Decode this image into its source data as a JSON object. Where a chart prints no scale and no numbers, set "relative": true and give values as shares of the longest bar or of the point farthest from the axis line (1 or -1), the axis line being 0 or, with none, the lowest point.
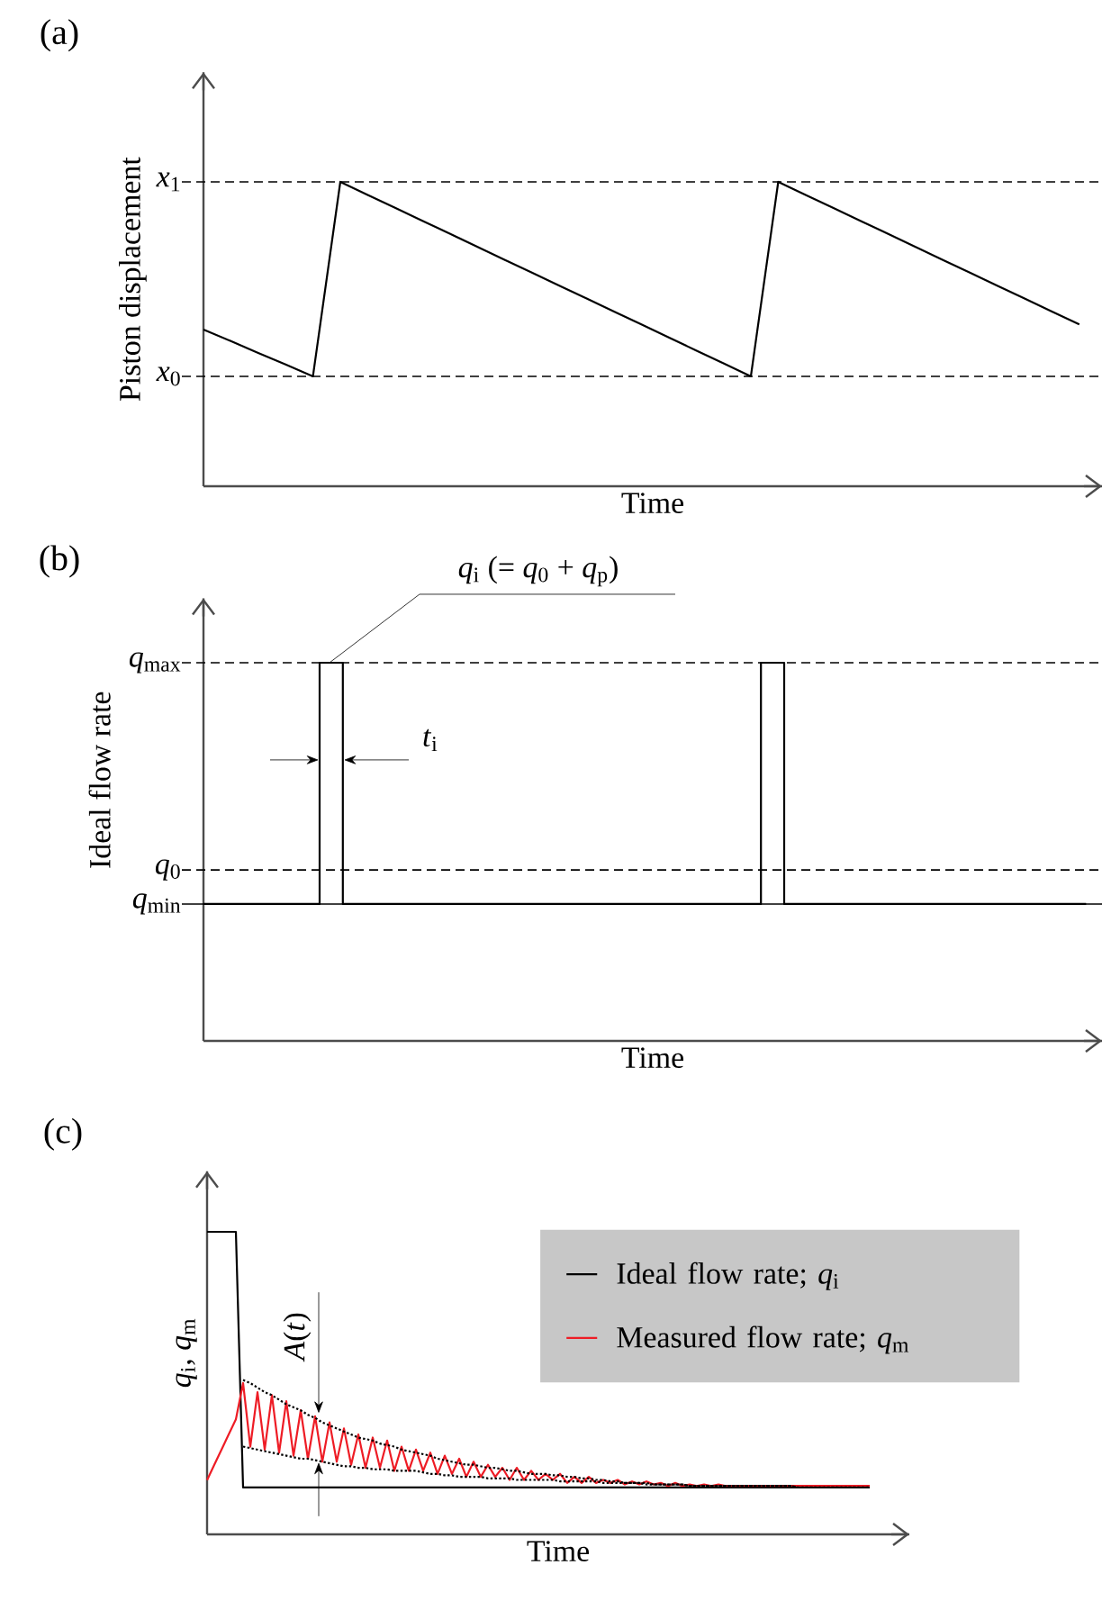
{
  "chart_data": [
    {
      "type": "line",
      "title": "(a)",
      "xlabel": "Time",
      "ylabel": "Piston displacement",
      "relative": true,
      "categories": [
        null,
        null,
        null,
        null,
        null,
        null,
        null,
        null,
        null,
        null,
        null,
        null,
        null,
        null,
        null,
        null,
        null,
        null,
        null,
        null,
        null,
        null,
        null,
        null,
        null,
        null,
        null,
        null,
        null,
        null,
        null,
        null,
        null
      ],
      "series": [
        {
          "color": "#000000",
          "values": [
            0.515,
            0.477,
            0.438,
            0.4,
            0.361,
            1,
            0.957,
            0.915,
            0.872,
            0.83,
            0.787,
            0.744,
            0.702,
            0.659,
            0.617,
            0.574,
            0.532,
            0.489,
            0.446,
            0.404,
            0.361,
            1,
            0.957,
            0.915,
            0.872,
            0.83,
            0.787,
            0.744,
            0.702,
            0.659,
            0.617,
            0.574,
            0.532
          ]
        }
      ],
      "ref_lines": [
        {
          "axis": "y",
          "value": 1,
          "label": "*x*$_{1}$",
          "color": "#000000",
          "line_style": "dashed"
        },
        {
          "axis": "y",
          "value": 0.361,
          "label": "*x*$_{0}$",
          "color": "#000000",
          "line_style": "dashed"
        }
      ]
    },
    {
      "type": "step",
      "title": "(b)",
      "xlabel": "Time",
      "ylabel": "Ideal flow rate",
      "relative": true,
      "categories": [
        null,
        null,
        null,
        null,
        null,
        null,
        null,
        null,
        null,
        null,
        null,
        null,
        null,
        null,
        null,
        null,
        null,
        null,
        null,
        null,
        null,
        null,
        null,
        null,
        null,
        null,
        null,
        null,
        null,
        null,
        null,
        null,
        null,
        null,
        null,
        null,
        null,
        null,
        null
      ],
      "series": [
        {
          "color": "#000000",
          "values": [
            0.362,
            0.362,
            0.362,
            0.362,
            0.362,
            1,
            0.362,
            0.362,
            0.362,
            0.362,
            0.362,
            0.362,
            0.362,
            0.362,
            0.362,
            0.362,
            0.362,
            0.362,
            0.362,
            0.362,
            0.362,
            0.362,
            0.362,
            0.362,
            1,
            0.362,
            0.362,
            0.362,
            0.362,
            0.362,
            0.362,
            0.362,
            0.362,
            0.362,
            0.362,
            0.362,
            0.362,
            0.362,
            0.362
          ]
        }
      ],
      "ref_lines": [
        {
          "axis": "y",
          "value": 1,
          "label": "*q*$_{max}$",
          "color": "#000000",
          "line_style": "dashed"
        },
        {
          "axis": "y",
          "value": 0.452,
          "label": "*q*$_{0}$",
          "color": "#000000",
          "line_style": "dashed"
        },
        {
          "axis": "y",
          "value": 0.362,
          "label": "*q*$_{min}$",
          "color": "#000000",
          "line_style": "solid"
        }
      ],
      "annotations": [
        "*q*$_{i}$ (= *q*$_{0}$ + *q*$_{p}$)",
        "*t*$_{i}$"
      ]
    },
    {
      "type": "line",
      "title": "(c)",
      "xlabel": "Time",
      "ylabel": "*q*$_{i}$, *q*$_{m}$",
      "relative": true,
      "legend": "top right",
      "categories": [
        null,
        null,
        null,
        null,
        null,
        null,
        null,
        null,
        null,
        null,
        null,
        null,
        null,
        null,
        null,
        null,
        null,
        null,
        null,
        null,
        null,
        null,
        null,
        null,
        null,
        null,
        null,
        null,
        null,
        null,
        null,
        null,
        null,
        null,
        null,
        null,
        null,
        null,
        null,
        null,
        null,
        null,
        null,
        null,
        null,
        null,
        null,
        null,
        null,
        null,
        null,
        null,
        null,
        null,
        null,
        null,
        null,
        null,
        null,
        null,
        null,
        null,
        null,
        null,
        null,
        null,
        null,
        null,
        null,
        null,
        null,
        null,
        null,
        null,
        null,
        null,
        null,
        null,
        null,
        null,
        null,
        null,
        null,
        null,
        null,
        null,
        null,
        null,
        null,
        null,
        null,
        null,
        null
      ],
      "series": [
        {
          "name": "Ideal flow rate; *q*$_{i}$",
          "color": "#000000",
          "line_style": "solid",
          "values": [
            1,
            1,
            1,
            1,
            1,
            0.155,
            0.155,
            0.155,
            0.155,
            0.155,
            0.155,
            0.155,
            0.155,
            0.155,
            0.155,
            0.155,
            0.155,
            0.155,
            0.155,
            0.155,
            0.155,
            0.155,
            0.155,
            0.155,
            0.155,
            0.155,
            0.155,
            0.155,
            0.155,
            0.155,
            0.155,
            0.155,
            0.155,
            0.155,
            0.155,
            0.155,
            0.155,
            0.155,
            0.155,
            0.155,
            0.155,
            0.155,
            0.155,
            0.155,
            0.155,
            0.155,
            0.155,
            0.155,
            0.155,
            0.155,
            0.155,
            0.155,
            0.155,
            0.155,
            0.155,
            0.155,
            0.155,
            0.155,
            0.155,
            0.155,
            0.155,
            0.155,
            0.155,
            0.155,
            0.155,
            0.155,
            0.155,
            0.155,
            0.155,
            0.155,
            0.155,
            0.155,
            0.155,
            0.155,
            0.155,
            0.155,
            0.155,
            0.155,
            0.155,
            0.155,
            0.155,
            0.155,
            0.155,
            0.155,
            0.155,
            0.155,
            0.155,
            0.155,
            0.155,
            0.155,
            0.155,
            0.155,
            0.155
          ]
        },
        {
          "name": "Measured flow rate; *q*$_{m}$",
          "color": "#ee1c25",
          "line_style": "solid",
          "values": [
            0.179,
            0.23,
            0.28,
            0.33,
            0.38,
            0.5,
            0.29,
            0.47,
            0.28,
            0.46,
            0.27,
            0.44,
            0.26,
            0.41,
            0.25,
            0.39,
            0.24,
            0.37,
            0.24,
            0.35,
            0.23,
            0.33,
            0.22,
            0.32,
            0.22,
            0.31,
            0.21,
            0.29,
            0.21,
            0.28,
            0.21,
            0.27,
            0.2,
            0.26,
            0.2,
            0.25,
            0.19,
            0.24,
            0.19,
            0.23,
            0.19,
            0.22,
            0.18,
            0.22,
            0.18,
            0.21,
            0.18,
            0.2,
            0.18,
            0.2,
            0.17,
            0.19,
            0.17,
            0.19,
            0.17,
            0.18,
            0.17,
            0.18,
            0.165,
            0.175,
            0.165,
            0.175,
            0.165,
            0.17,
            0.16,
            0.17,
            0.16,
            0.165,
            0.16,
            0.165,
            0.16,
            0.165,
            0.16,
            0.16,
            0.16,
            0.16,
            0.16,
            0.16,
            0.16,
            0.16,
            0.16,
            0.16,
            0.16,
            0.16,
            0.16,
            0.16,
            0.16,
            0.16,
            0.16,
            0.16,
            0.16,
            0.16,
            0.16
          ]
        },
        {
          "color": "#000000",
          "line_style": "dotted",
          "values": [
            null,
            null,
            null,
            null,
            null,
            0.51,
            0.5,
            0.485,
            0.47,
            0.46,
            0.445,
            0.43,
            0.42,
            0.41,
            0.395,
            0.385,
            0.37,
            0.36,
            0.35,
            0.34,
            0.33,
            0.32,
            0.315,
            0.31,
            0.3,
            0.295,
            0.29,
            0.28,
            0.275,
            0.27,
            0.265,
            0.26,
            0.25,
            0.245,
            0.24,
            0.235,
            0.23,
            0.23,
            0.225,
            0.22,
            0.22,
            0.215,
            0.21,
            0.21,
            0.205,
            0.2,
            0.2,
            0.2,
            0.195,
            0.195,
            0.19,
            0.19,
            0.185,
            0.185,
            0.18,
            0.18,
            0.175,
            0.175,
            0.17,
            0.17,
            0.17,
            0.17,
            0.165,
            0.165,
            0.165,
            0.165,
            0.165,
            0.16,
            0.16,
            0.16,
            0.16,
            0.16,
            0.16,
            0.16,
            0.16,
            0.16,
            0.16,
            0.16,
            0.16,
            0.16,
            0.16,
            0.16,
            0.155,
            0.155,
            0.155,
            0.155,
            0.155,
            0.155,
            0.155,
            0.155,
            0.155,
            0.155,
            0.155
          ]
        },
        {
          "color": "#000000",
          "line_style": "dotted",
          "values": [
            null,
            null,
            null,
            null,
            null,
            0.29,
            0.285,
            0.28,
            0.275,
            0.27,
            0.265,
            0.26,
            0.255,
            0.25,
            0.25,
            0.245,
            0.24,
            0.235,
            0.23,
            0.225,
            0.225,
            0.22,
            0.22,
            0.215,
            0.215,
            0.215,
            0.21,
            0.21,
            0.21,
            0.21,
            0.205,
            0.2,
            0.2,
            0.195,
            0.195,
            0.19,
            0.19,
            0.19,
            0.19,
            0.185,
            0.185,
            0.185,
            0.185,
            0.18,
            0.18,
            0.18,
            0.18,
            0.18,
            0.18,
            0.175,
            0.175,
            0.175,
            0.175,
            0.175,
            0.175,
            0.17,
            0.17,
            0.17,
            0.17,
            0.17,
            0.17,
            0.165,
            0.165,
            0.165,
            0.165,
            0.165,
            0.165,
            0.16,
            0.16,
            0.16,
            0.16,
            0.16,
            0.16,
            0.16,
            0.16,
            0.16,
            0.16,
            0.16,
            0.16,
            0.16,
            0.16,
            0.16,
            0.155,
            0.155,
            0.155,
            0.155,
            0.155,
            0.155,
            0.155,
            0.155,
            0.155,
            0.155,
            0.155
          ]
        }
      ],
      "annotations": [
        "*A*(*t*)"
      ]
    }
  ]
}
